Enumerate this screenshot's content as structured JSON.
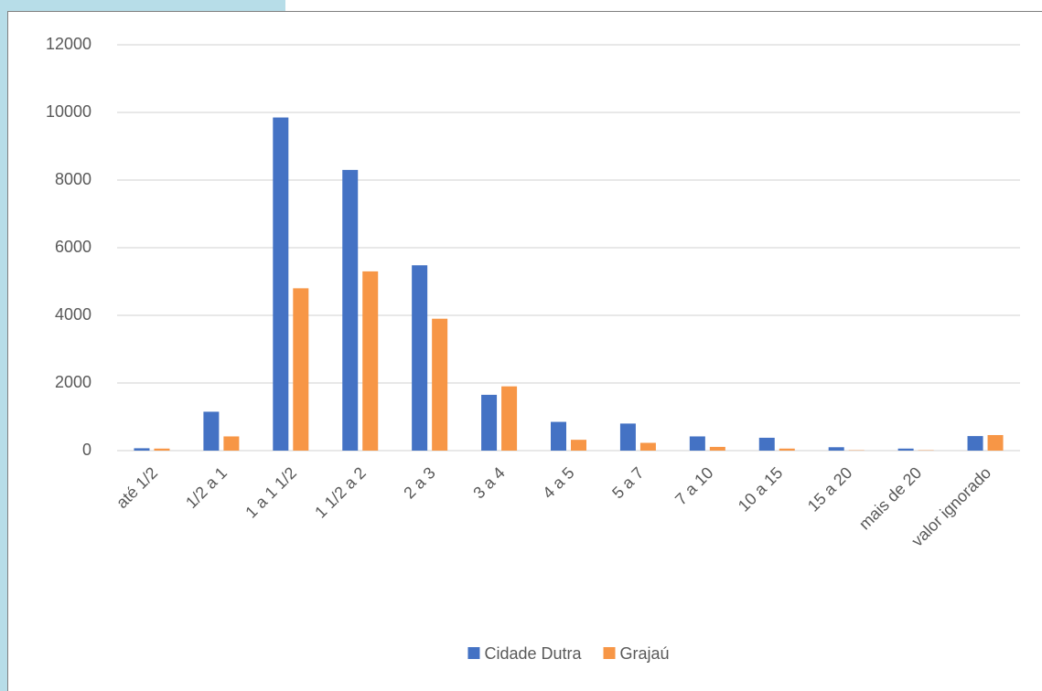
{
  "chart_data": {
    "type": "bar",
    "categories": [
      "até 1/2",
      "1/2 a 1",
      "1 a 1 1/2",
      "1 1/2 a 2",
      "2 a 3",
      "3 a 4",
      "4 a 5",
      "5 a 7",
      "7 a 10",
      "10 a 15",
      "15 a 20",
      "mais de 20",
      "valor ignorado"
    ],
    "series": [
      {
        "name": "Cidade Dutra",
        "color": "#4472c4",
        "values": [
          70,
          1150,
          9850,
          8300,
          5480,
          1650,
          850,
          800,
          420,
          380,
          100,
          60,
          430
        ]
      },
      {
        "name": "Grajaú",
        "color": "#f79646",
        "values": [
          60,
          420,
          4800,
          5300,
          3900,
          1900,
          320,
          230,
          110,
          60,
          10,
          10,
          460
        ]
      }
    ],
    "ylim": [
      0,
      12000
    ],
    "yticks": [
      0,
      2000,
      4000,
      6000,
      8000,
      10000,
      12000
    ],
    "grid": true,
    "legend": "bottom"
  }
}
